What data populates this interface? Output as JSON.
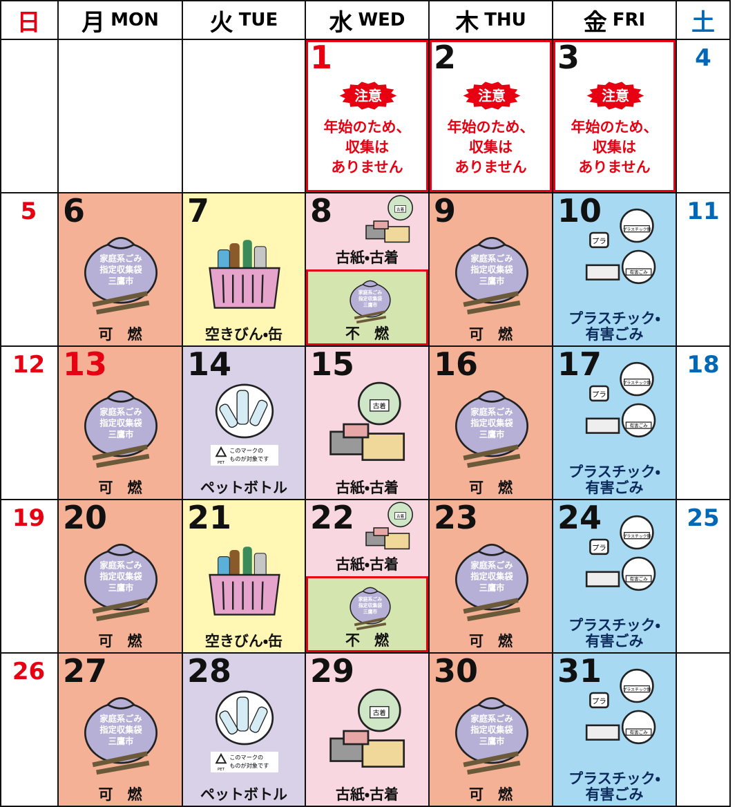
{
  "header": [
    {
      "ja": "日",
      "color": "#e60012"
    },
    {
      "ja": "月",
      "en": "MON"
    },
    {
      "ja": "火",
      "en": "TUE"
    },
    {
      "ja": "水",
      "en": "WED"
    },
    {
      "ja": "木",
      "en": "THU"
    },
    {
      "ja": "金",
      "en": "FRI"
    },
    {
      "ja": "土",
      "color": "#0068b7"
    }
  ],
  "icon_texts": {
    "bag": [
      "家庭系ごみ",
      "指定収集袋",
      "三鷹市"
    ],
    "clothes": "古着",
    "plastic": "プラスチック類",
    "hazardous": "有害ごみ",
    "pla": "プラ",
    "pet": "PET",
    "pet_note": [
      "このマークの",
      "ものが対象です"
    ]
  },
  "weeks": [
    [
      null,
      null,
      null,
      {
        "day": 1,
        "day_color": "#e60012",
        "border": "#e60012",
        "badge": "注意",
        "lines": [
          "年始のため、",
          "収集は",
          "ありません"
        ]
      },
      {
        "day": 2,
        "border": "#e60012",
        "badge": "注意",
        "lines": [
          "年始のため、",
          "収集は",
          "ありません"
        ]
      },
      {
        "day": 3,
        "border": "#e60012",
        "badge": "注意",
        "lines": [
          "年始のため、",
          "収集は",
          "ありません"
        ]
      },
      {
        "day": 4,
        "day_color": "#0068b7"
      }
    ],
    [
      {
        "day": 5,
        "day_color": "#e60012"
      },
      {
        "day": 6,
        "color": "#f4b196",
        "icon": "bag",
        "lines": [
          "可　燃"
        ]
      },
      {
        "day": 7,
        "color": "#fff7b3",
        "icon": "basket",
        "lines": [
          "空きびん・缶"
        ]
      },
      {
        "day": 8,
        "color": "#f8d7e1",
        "icon": "paper",
        "lines": [
          "古紙・古着"
        ],
        "sub": {
          "color": "#d5e5b0",
          "border": "#e60012",
          "icon": "bag",
          "lines": [
            "不　燃"
          ]
        }
      },
      {
        "day": 9,
        "color": "#f4b196",
        "icon": "bag",
        "lines": [
          "可　燃"
        ]
      },
      {
        "day": 10,
        "color": "#a8d9f2",
        "icon": "plastic",
        "lines": [
          "プラスチック・",
          "有害ごみ"
        ]
      },
      {
        "day": 11,
        "day_color": "#0068b7"
      }
    ],
    [
      {
        "day": 12,
        "day_color": "#e60012"
      },
      {
        "day": 13,
        "day_color": "#e60012",
        "color": "#f4b196",
        "icon": "bag",
        "lines": [
          "可　燃"
        ]
      },
      {
        "day": 14,
        "color": "#d8d1e8",
        "icon": "pet",
        "lines": [
          "ペットボトル"
        ]
      },
      {
        "day": 15,
        "color": "#f8d7e1",
        "icon": "paper",
        "lines": [
          "古紙・古着"
        ]
      },
      {
        "day": 16,
        "color": "#f4b196",
        "icon": "bag",
        "lines": [
          "可　燃"
        ]
      },
      {
        "day": 17,
        "color": "#a8d9f2",
        "icon": "plastic",
        "lines": [
          "プラスチック・",
          "有害ごみ"
        ]
      },
      {
        "day": 18,
        "day_color": "#0068b7"
      }
    ],
    [
      {
        "day": 19,
        "day_color": "#e60012"
      },
      {
        "day": 20,
        "color": "#f4b196",
        "icon": "bag",
        "lines": [
          "可　燃"
        ]
      },
      {
        "day": 21,
        "color": "#fff7b3",
        "icon": "basket",
        "lines": [
          "空きびん・缶"
        ]
      },
      {
        "day": 22,
        "color": "#f8d7e1",
        "icon": "paper",
        "lines": [
          "古紙・古着"
        ],
        "sub": {
          "color": "#d5e5b0",
          "border": "#e60012",
          "icon": "bag",
          "lines": [
            "不　燃"
          ]
        }
      },
      {
        "day": 23,
        "color": "#f4b196",
        "icon": "bag",
        "lines": [
          "可　燃"
        ]
      },
      {
        "day": 24,
        "color": "#a8d9f2",
        "icon": "plastic",
        "lines": [
          "プラスチック・",
          "有害ごみ"
        ]
      },
      {
        "day": 25,
        "day_color": "#0068b7"
      }
    ],
    [
      {
        "day": 26,
        "day_color": "#e60012"
      },
      {
        "day": 27,
        "color": "#f4b196",
        "icon": "bag",
        "lines": [
          "可　燃"
        ]
      },
      {
        "day": 28,
        "color": "#d8d1e8",
        "icon": "pet",
        "lines": [
          "ペットボトル"
        ]
      },
      {
        "day": 29,
        "color": "#f8d7e1",
        "icon": "paper",
        "lines": [
          "古紙・古着"
        ]
      },
      {
        "day": 30,
        "color": "#f4b196",
        "icon": "bag",
        "lines": [
          "可　燃"
        ]
      },
      {
        "day": 31,
        "color": "#a8d9f2",
        "icon": "plastic",
        "lines": [
          "プラスチック・",
          "有害ごみ"
        ]
      },
      null
    ]
  ]
}
